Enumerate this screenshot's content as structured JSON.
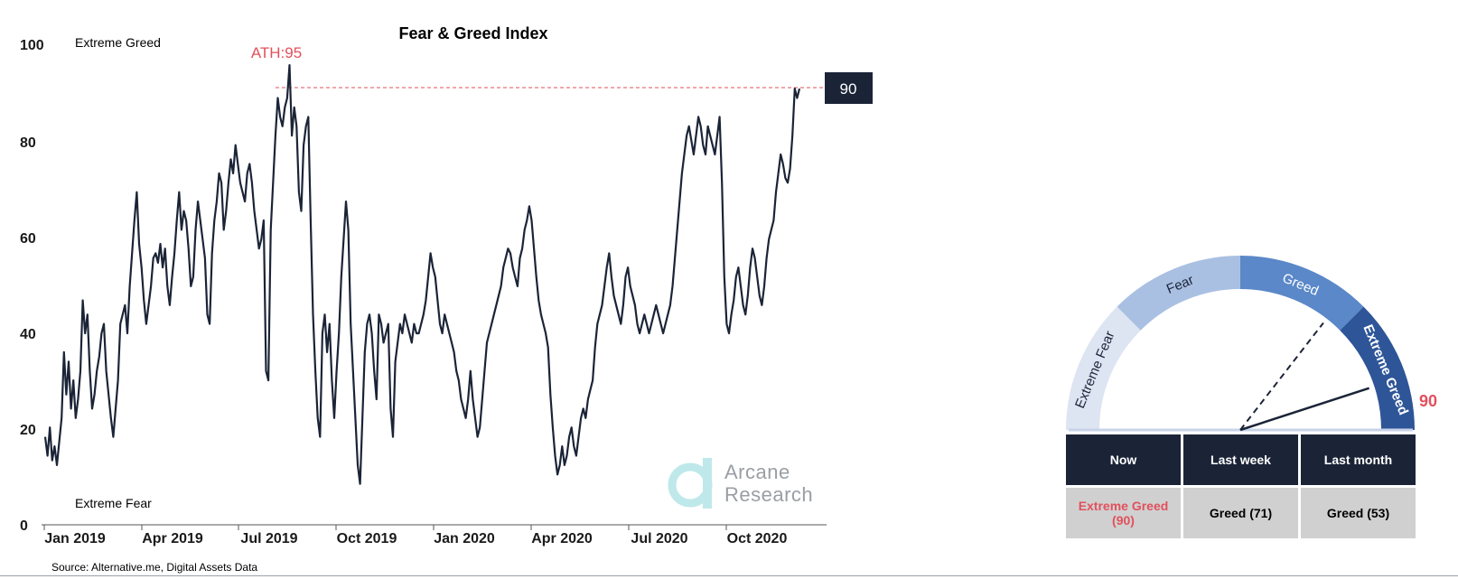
{
  "chart_data": {
    "type": "line",
    "title": "Fear & Greed Index",
    "y_ticks": [
      "0",
      "20",
      "40",
      "60",
      "80",
      "100"
    ],
    "ylim": [
      0,
      100
    ],
    "x_ticks": [
      "Jan 2019",
      "Apr 2019",
      "Jul 2019",
      "Oct 2019",
      "Jan 2020",
      "Apr 2020",
      "Jul 2020",
      "Oct 2020"
    ],
    "zone_labels": {
      "top": "Extreme Greed",
      "bottom": "Extreme Fear"
    },
    "ath_label": "ATH:95",
    "ath_value": 95,
    "current_value": 90,
    "current_label": "90",
    "series": [
      {
        "name": "Fear & Greed Index",
        "color": "#1b2437",
        "values": [
          16,
          12,
          18,
          11,
          14,
          10,
          15,
          20,
          34,
          25,
          32,
          22,
          28,
          20,
          24,
          30,
          45,
          38,
          42,
          30,
          22,
          25,
          30,
          33,
          38,
          40,
          30,
          25,
          20,
          16,
          22,
          28,
          40,
          42,
          44,
          38,
          48,
          55,
          62,
          68,
          57,
          52,
          45,
          40,
          44,
          48,
          54,
          55,
          53,
          57,
          52,
          56,
          48,
          44,
          50,
          55,
          62,
          68,
          60,
          64,
          62,
          56,
          48,
          50,
          60,
          66,
          62,
          58,
          54,
          42,
          40,
          55,
          62,
          66,
          72,
          70,
          60,
          64,
          70,
          75,
          72,
          78,
          74,
          70,
          68,
          66,
          72,
          74,
          70,
          64,
          60,
          56,
          58,
          62,
          30,
          28,
          60,
          70,
          80,
          88,
          84,
          82,
          86,
          88,
          95,
          80,
          86,
          82,
          68,
          64,
          78,
          82,
          84,
          62,
          42,
          30,
          20,
          16,
          38,
          42,
          34,
          40,
          28,
          20,
          30,
          38,
          50,
          58,
          66,
          60,
          40,
          30,
          20,
          10,
          6,
          20,
          34,
          40,
          42,
          38,
          30,
          24,
          42,
          40,
          36,
          38,
          40,
          22,
          16,
          32,
          36,
          40,
          38,
          42,
          40,
          38,
          36,
          40,
          38,
          38,
          40,
          42,
          45,
          50,
          55,
          52,
          50,
          45,
          40,
          38,
          42,
          40,
          38,
          36,
          34,
          30,
          28,
          24,
          22,
          20,
          24,
          30,
          24,
          20,
          16,
          18,
          24,
          30,
          36,
          38,
          40,
          42,
          44,
          46,
          48,
          52,
          54,
          56,
          55,
          52,
          50,
          48,
          54,
          56,
          60,
          62,
          65,
          62,
          56,
          50,
          45,
          42,
          40,
          38,
          35,
          25,
          18,
          12,
          8,
          10,
          14,
          10,
          12,
          16,
          18,
          14,
          12,
          16,
          20,
          22,
          20,
          24,
          26,
          28,
          35,
          40,
          42,
          44,
          48,
          52,
          55,
          50,
          46,
          44,
          42,
          40,
          44,
          50,
          52,
          48,
          46,
          44,
          40,
          38,
          40,
          42,
          40,
          38,
          40,
          42,
          44,
          42,
          40,
          38,
          40,
          42,
          44,
          48,
          54,
          60,
          66,
          72,
          76,
          80,
          82,
          79,
          76,
          80,
          84,
          82,
          78,
          76,
          82,
          80,
          78,
          76,
          80,
          84,
          70,
          50,
          40,
          38,
          42,
          45,
          50,
          52,
          48,
          44,
          42,
          46,
          52,
          56,
          54,
          50,
          46,
          44,
          48,
          54,
          58,
          60,
          62,
          68,
          72,
          76,
          74,
          71,
          70,
          73,
          80,
          90,
          88,
          90
        ],
        "labels": {}
      }
    ]
  },
  "annotations": {
    "value_box": "90"
  },
  "logo": {
    "line1": "Arcane",
    "line2": "Research"
  },
  "source": "Source: Alternative.me, Digital Assets Data",
  "gauge": {
    "value": 90,
    "value_label": "90",
    "needle_last_week_value": 71,
    "segments": [
      {
        "label": "Extreme Fear",
        "color": "#dde4f2",
        "text_color": "#1b2437"
      },
      {
        "label": "Fear",
        "color": "#a9c0e2",
        "text_color": "#1b2437"
      },
      {
        "label": "Greed",
        "color": "#5a88c8",
        "text_color": "#ffffff"
      },
      {
        "label": "Extreme Greed",
        "color": "#2e5597",
        "text_color": "#ffffff"
      }
    ]
  },
  "summary_table": {
    "headers": [
      "Now",
      "Last week",
      "Last month"
    ],
    "values": {
      "now_line1": "Extreme Greed",
      "now_line2": "(90)",
      "last_week": "Greed (71)",
      "last_month": "Greed (53)"
    }
  },
  "colors": {
    "line": "#1b2437",
    "accent": "#e2505c",
    "box": "#1b2437"
  }
}
